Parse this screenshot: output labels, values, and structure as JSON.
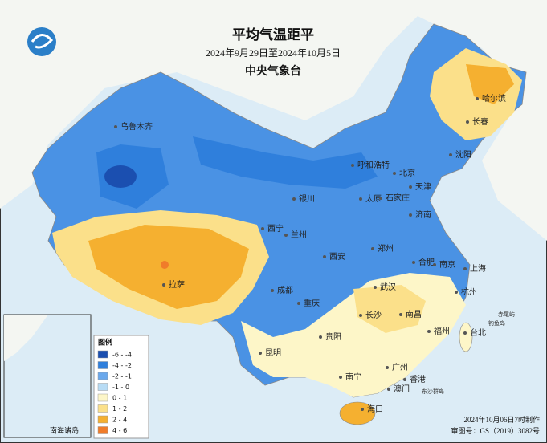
{
  "header": {
    "title": "平均气温距平",
    "subtitle": "2024年9月29日至2024年10月5日",
    "issuer": "中央气象台"
  },
  "cities": [
    "乌鲁木齐",
    "哈尔滨",
    "长春",
    "沈阳",
    "呼和浩特",
    "北京",
    "天津",
    "银川",
    "太原",
    "石家庄",
    "济南",
    "西宁",
    "兰州",
    "郑州",
    "西安",
    "合肥",
    "南京",
    "上海",
    "拉萨",
    "成都",
    "武汉",
    "重庆",
    "杭州",
    "长沙",
    "南昌",
    "贵阳",
    "福州",
    "台北",
    "昆明",
    "南宁",
    "广州",
    "香港",
    "澳门",
    "海口"
  ],
  "islands": [
    "赤尾屿",
    "钓鱼岛",
    "东沙群岛"
  ],
  "legend": {
    "title": "图例",
    "items": [
      {
        "label": "-6 - -4",
        "color": "#1b4fb0"
      },
      {
        "label": "-4 - -2",
        "color": "#2f7fdc"
      },
      {
        "label": "-2 - -1",
        "color": "#6aa8ec"
      },
      {
        "label": "-1 - 0",
        "color": "#b8dcf5"
      },
      {
        "label": "0 - 1",
        "color": "#fdf6c8"
      },
      {
        "label": "1 - 2",
        "color": "#fbe08a"
      },
      {
        "label": "2 - 4",
        "color": "#f5b030"
      },
      {
        "label": "4 - 6",
        "color": "#f07c2a"
      }
    ]
  },
  "inset": {
    "label": "南海诸岛"
  },
  "footer": {
    "made": "2024年10月06日7时制作",
    "approval": "审图号：GS（2019）3082号"
  }
}
